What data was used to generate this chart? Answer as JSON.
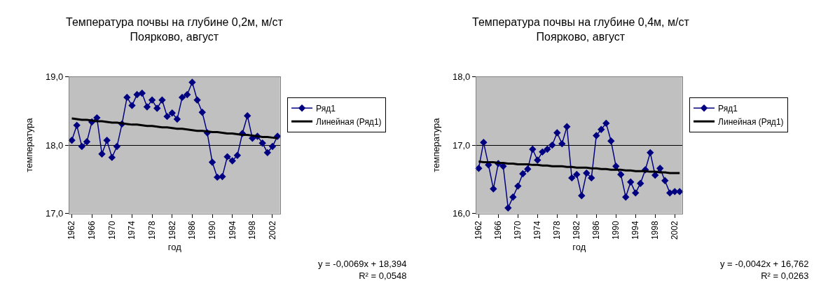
{
  "chart_data": [
    {
      "type": "line",
      "title": "Температура почвы на глубине 0,2м, м/ст\nПоярково, август",
      "xlabel": "год",
      "ylabel": "температура",
      "categories": [
        "1962",
        null,
        null,
        null,
        "1966",
        null,
        null,
        null,
        "1970",
        null,
        null,
        null,
        "1974",
        null,
        null,
        null,
        "1978",
        null,
        null,
        null,
        "1982",
        null,
        null,
        null,
        "1986",
        null,
        null,
        null,
        "1990",
        null,
        null,
        null,
        "1994",
        null,
        null,
        null,
        "1998",
        null,
        null,
        null,
        "2002",
        null
      ],
      "series": [
        {
          "name": "Ряд1",
          "color": "#000080",
          "marker": "diamond",
          "values": [
            18.07,
            18.29,
            17.98,
            18.05,
            18.34,
            18.4,
            17.87,
            18.07,
            17.82,
            17.98,
            18.31,
            18.7,
            18.58,
            18.74,
            18.76,
            18.56,
            18.66,
            18.54,
            18.66,
            18.42,
            18.47,
            18.38,
            18.7,
            18.74,
            18.92,
            18.66,
            18.48,
            18.18,
            17.75,
            17.53,
            17.54,
            17.83,
            17.77,
            17.85,
            18.17,
            18.43,
            18.1,
            18.13,
            18.03,
            17.89,
            17.98,
            18.13
          ]
        },
        {
          "name": "Линейная (Ряд1)",
          "color": "#000000",
          "marker": "none",
          "values": [
            18.39,
            18.38,
            18.37,
            18.37,
            18.36,
            18.35,
            18.35,
            18.34,
            18.33,
            18.33,
            18.32,
            18.31,
            18.3,
            18.3,
            18.29,
            18.28,
            18.28,
            18.27,
            18.26,
            18.26,
            18.25,
            18.24,
            18.24,
            18.23,
            18.22,
            18.21,
            18.21,
            18.2,
            18.19,
            18.19,
            18.18,
            18.17,
            18.17,
            18.16,
            18.15,
            18.15,
            18.14,
            18.13,
            18.12,
            18.12,
            18.11,
            18.1
          ]
        }
      ],
      "ylim": [
        17,
        19
      ],
      "yticks": [
        {
          "value": 17,
          "label": "17,0"
        },
        {
          "value": 18,
          "label": "18,0"
        },
        {
          "value": 19,
          "label": "19,0"
        }
      ],
      "grid": "y",
      "legend": "right",
      "line_style": "solid",
      "annotations": [
        "y = -0,0069x + 18,394\nR² = 0,0548"
      ]
    },
    {
      "type": "line",
      "title": "Температура почвы на глубине 0,4м, м/ст\nПоярково, август",
      "xlabel": "год",
      "ylabel": "температура",
      "categories": [
        "1962",
        null,
        null,
        null,
        "1966",
        null,
        null,
        null,
        "1970",
        null,
        null,
        null,
        "1974",
        null,
        null,
        null,
        "1978",
        null,
        null,
        null,
        "1982",
        null,
        null,
        null,
        "1986",
        null,
        null,
        null,
        "1990",
        null,
        null,
        null,
        "1994",
        null,
        null,
        null,
        "1998",
        null,
        null,
        null,
        "2002",
        null
      ],
      "series": [
        {
          "name": "Ряд1",
          "color": "#000080",
          "marker": "diamond",
          "values": [
            16.66,
            17.04,
            16.71,
            16.36,
            16.73,
            16.69,
            16.08,
            16.24,
            16.4,
            16.58,
            16.65,
            16.94,
            16.78,
            16.9,
            16.94,
            17.0,
            17.18,
            17.02,
            17.27,
            16.52,
            16.57,
            16.26,
            16.59,
            16.52,
            17.14,
            17.23,
            17.32,
            17.06,
            16.69,
            16.57,
            16.24,
            16.46,
            16.3,
            16.44,
            16.64,
            16.89,
            16.56,
            16.66,
            16.48,
            16.3,
            16.32,
            16.32
          ]
        },
        {
          "name": "Линейная (Ряд1)",
          "color": "#000000",
          "marker": "none",
          "values": [
            16.76,
            16.75,
            16.75,
            16.75,
            16.74,
            16.74,
            16.73,
            16.73,
            16.72,
            16.72,
            16.72,
            16.71,
            16.71,
            16.7,
            16.7,
            16.69,
            16.69,
            16.69,
            16.68,
            16.68,
            16.67,
            16.67,
            16.67,
            16.66,
            16.66,
            16.65,
            16.65,
            16.64,
            16.64,
            16.64,
            16.63,
            16.63,
            16.62,
            16.62,
            16.62,
            16.61,
            16.61,
            16.6,
            16.6,
            16.59,
            16.59,
            16.59
          ]
        }
      ],
      "ylim": [
        16,
        18
      ],
      "yticks": [
        {
          "value": 16,
          "label": "16,0"
        },
        {
          "value": 17,
          "label": "17,0"
        },
        {
          "value": 18,
          "label": "18,0"
        }
      ],
      "grid": "y",
      "legend": "right",
      "line_style": "solid",
      "annotations": [
        "y = -0,0042x + 16,762\nR² = 0,0263"
      ]
    }
  ]
}
